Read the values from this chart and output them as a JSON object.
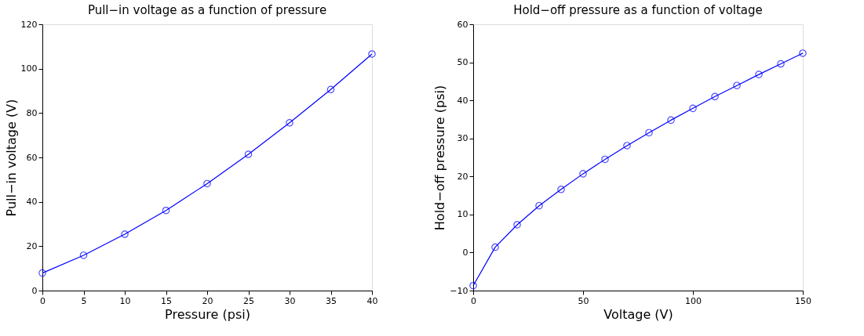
{
  "chart_data": [
    {
      "type": "line",
      "title": "Pull−in voltage as a function of pressure",
      "xlabel": "Pressure (psi)",
      "ylabel": "Pull−in voltage (V)",
      "x": [
        0,
        5,
        10,
        15,
        20,
        25,
        30,
        35,
        40
      ],
      "series": [
        {
          "color": "#0000ff",
          "values": [
            7.9,
            15.9,
            25.4,
            36.1,
            48.2,
            61.4,
            75.6,
            90.6,
            106.6
          ]
        }
      ],
      "xlim": [
        0,
        40
      ],
      "ylim": [
        0,
        120
      ],
      "xticks": [
        0,
        5,
        10,
        15,
        20,
        25,
        30,
        35,
        40
      ],
      "yticks": [
        0,
        20,
        40,
        60,
        80,
        100,
        120
      ],
      "marker": "circle",
      "line_style": "solid",
      "grid": false
    },
    {
      "type": "line",
      "title": "Hold−off pressure as a function of voltage",
      "xlabel": "Voltage (V)",
      "ylabel": "Hold−off pressure (psi)",
      "x": [
        0,
        10,
        20,
        30,
        40,
        50,
        60,
        70,
        80,
        90,
        100,
        110,
        120,
        130,
        140,
        150
      ],
      "series": [
        {
          "color": "#0000ff",
          "values": [
            -8.7,
            1.4,
            7.3,
            12.3,
            16.6,
            20.7,
            24.5,
            28.1,
            31.5,
            34.8,
            37.9,
            41.0,
            43.9,
            46.8,
            49.6,
            52.4
          ]
        }
      ],
      "xlim": [
        0,
        150
      ],
      "ylim": [
        -10,
        60
      ],
      "xticks": [
        0,
        50,
        100,
        150
      ],
      "yticks": [
        -10,
        0,
        10,
        20,
        30,
        40,
        50,
        60
      ],
      "marker": "circle",
      "line_style": "solid",
      "grid": false
    }
  ]
}
